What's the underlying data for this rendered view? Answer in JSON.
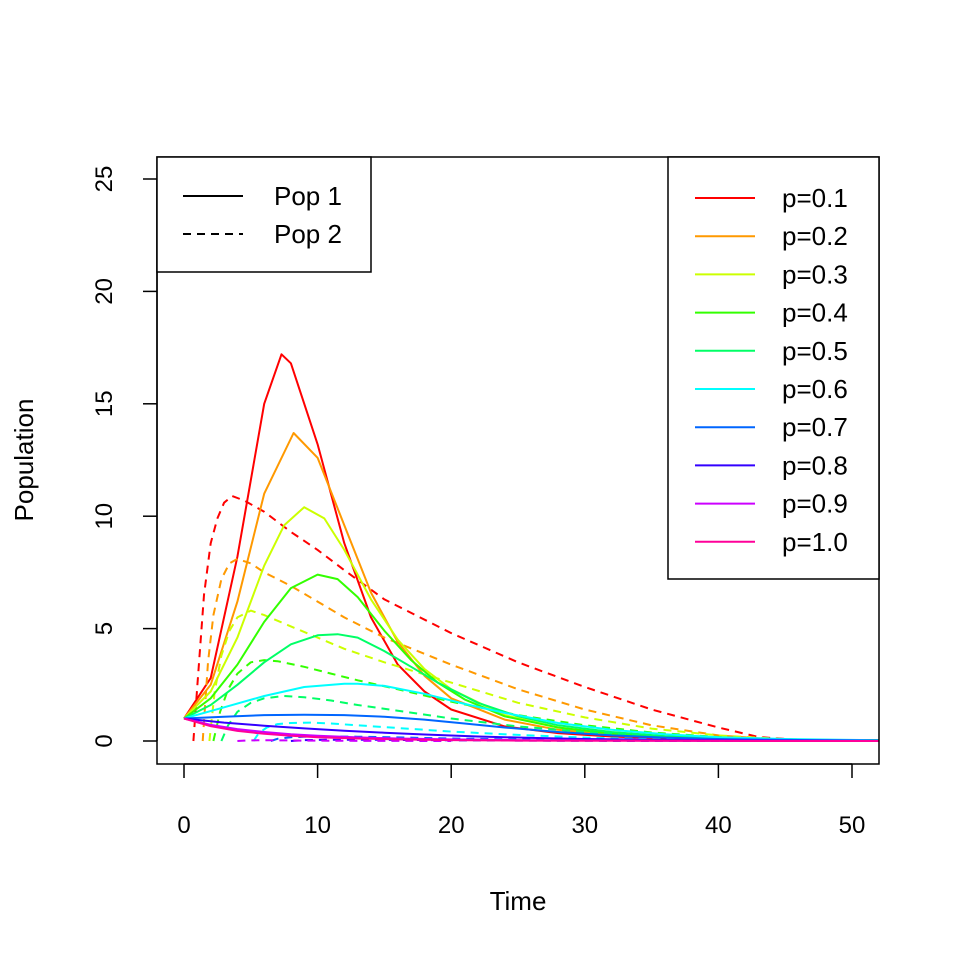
{
  "chart_data": {
    "type": "line",
    "title": "",
    "xlabel": "Time",
    "ylabel": "Population",
    "xlim": [
      -2,
      52
    ],
    "ylim": [
      -1,
      26
    ],
    "x_ticks": [
      "0",
      "10",
      "20",
      "30",
      "40",
      "50"
    ],
    "y_ticks": [
      "0",
      "5",
      "10",
      "15",
      "20",
      "25"
    ],
    "grid": false,
    "legends": [
      {
        "placement": "top-left",
        "entries": [
          {
            "label": "Pop 1",
            "dash": "solid"
          },
          {
            "label": "Pop 2",
            "dash": "dashed"
          }
        ]
      },
      {
        "placement": "top-right",
        "entries": [
          {
            "label": "p=0.1",
            "color": "#FF0000"
          },
          {
            "label": "p=0.2",
            "color": "#FF9900"
          },
          {
            "label": "p=0.3",
            "color": "#CCFF00"
          },
          {
            "label": "p=0.4",
            "color": "#33FF00"
          },
          {
            "label": "p=0.5",
            "color": "#00FF66"
          },
          {
            "label": "p=0.6",
            "color": "#00FFFF"
          },
          {
            "label": "p=0.7",
            "color": "#0066FF"
          },
          {
            "label": "p=0.8",
            "color": "#3300FF"
          },
          {
            "label": "p=0.9",
            "color": "#CC00FF"
          },
          {
            "label": "p=1.0",
            "color": "#FF0099"
          }
        ]
      }
    ],
    "series": [
      {
        "name": "p=0.1",
        "color": "#FF0000",
        "dash": "solid",
        "x": [
          0,
          2,
          4,
          6,
          7.3,
          8,
          10,
          12,
          14,
          16,
          18,
          20,
          24,
          28,
          32,
          36,
          40,
          45,
          52
        ],
        "y": [
          1,
          2.8,
          8.2,
          15,
          17.2,
          16.8,
          13.2,
          8.8,
          5.5,
          3.4,
          2.2,
          1.4,
          0.65,
          0.35,
          0.2,
          0.12,
          0.07,
          0.04,
          0.02
        ]
      },
      {
        "name": "p=0.1",
        "color": "#FF0000",
        "dash": "dashed",
        "x": [
          0.7,
          1,
          1.5,
          2,
          2.5,
          3,
          3.6,
          4.5,
          6,
          8,
          10,
          12,
          15,
          20,
          25,
          30,
          35,
          40,
          43,
          46,
          52
        ],
        "y": [
          0,
          2.5,
          6.5,
          8.8,
          9.9,
          10.6,
          10.9,
          10.7,
          10.2,
          9.3,
          8.5,
          7.6,
          6.3,
          4.8,
          3.5,
          2.4,
          1.4,
          0.6,
          0.18,
          0.05,
          0
        ]
      },
      {
        "name": "p=0.2",
        "color": "#FF9900",
        "dash": "solid",
        "x": [
          0,
          2,
          4,
          6,
          8.2,
          10,
          12,
          14,
          16,
          18,
          20,
          24,
          28,
          32,
          36,
          40,
          45,
          52
        ],
        "y": [
          1,
          2.5,
          6.2,
          11,
          13.7,
          12.6,
          9.6,
          6.6,
          4.4,
          2.9,
          1.9,
          0.95,
          0.5,
          0.28,
          0.16,
          0.1,
          0.06,
          0.03
        ]
      },
      {
        "name": "p=0.2",
        "color": "#FF9900",
        "dash": "dashed",
        "x": [
          1.4,
          1.8,
          2.2,
          2.8,
          3.4,
          4,
          5,
          6,
          8,
          10,
          12,
          15,
          20,
          25,
          30,
          35,
          40,
          44,
          52
        ],
        "y": [
          0,
          3.5,
          5.6,
          7.2,
          7.9,
          8.1,
          7.9,
          7.5,
          6.9,
          6.2,
          5.5,
          4.6,
          3.4,
          2.3,
          1.4,
          0.7,
          0.25,
          0.08,
          0
        ]
      },
      {
        "name": "p=0.3",
        "color": "#CCFF00",
        "dash": "solid",
        "x": [
          0,
          2,
          4,
          6,
          7.5,
          9,
          10.5,
          12,
          14,
          16,
          18,
          20,
          24,
          28,
          32,
          36,
          40,
          45,
          52
        ],
        "y": [
          1,
          2.2,
          4.6,
          7.8,
          9.6,
          10.4,
          9.9,
          8.5,
          6.3,
          4.5,
          3.2,
          2.3,
          1.15,
          0.6,
          0.32,
          0.18,
          0.1,
          0.06,
          0.03
        ]
      },
      {
        "name": "p=0.3",
        "color": "#CCFF00",
        "dash": "dashed",
        "x": [
          1.9,
          2.3,
          2.8,
          3.4,
          4,
          5,
          6,
          8,
          10,
          12,
          15,
          20,
          25,
          30,
          35,
          40,
          45,
          52
        ],
        "y": [
          0,
          2.2,
          3.8,
          4.9,
          5.5,
          5.8,
          5.6,
          5.1,
          4.6,
          4.1,
          3.5,
          2.6,
          1.7,
          1.05,
          0.55,
          0.25,
          0.08,
          0
        ]
      },
      {
        "name": "p=0.4",
        "color": "#33FF00",
        "dash": "solid",
        "x": [
          0,
          2,
          4,
          6,
          8,
          10,
          11.5,
          13,
          15,
          17,
          19,
          21,
          24,
          28,
          32,
          36,
          40,
          45,
          52
        ],
        "y": [
          1,
          1.9,
          3.4,
          5.3,
          6.8,
          7.4,
          7.2,
          6.4,
          4.9,
          3.6,
          2.6,
          1.85,
          1.1,
          0.6,
          0.33,
          0.18,
          0.1,
          0.06,
          0.03
        ]
      },
      {
        "name": "p=0.4",
        "color": "#33FF00",
        "dash": "dashed",
        "x": [
          2.2,
          2.7,
          3.3,
          4,
          5,
          6,
          7,
          9,
          11,
          13,
          16,
          20,
          25,
          30,
          35,
          40,
          45,
          52
        ],
        "y": [
          0,
          1.3,
          2.3,
          3,
          3.5,
          3.6,
          3.55,
          3.3,
          3,
          2.7,
          2.3,
          1.75,
          1.15,
          0.7,
          0.38,
          0.18,
          0.06,
          0
        ]
      },
      {
        "name": "p=0.5",
        "color": "#00FF66",
        "dash": "solid",
        "x": [
          0,
          2,
          4,
          6,
          8,
          10,
          11.5,
          13,
          15,
          17,
          19,
          22,
          25,
          28,
          32,
          36,
          40,
          45,
          52
        ],
        "y": [
          1,
          1.6,
          2.5,
          3.5,
          4.3,
          4.7,
          4.75,
          4.6,
          4,
          3.3,
          2.6,
          1.7,
          1.1,
          0.7,
          0.4,
          0.22,
          0.12,
          0.06,
          0.03
        ]
      },
      {
        "name": "p=0.5",
        "color": "#00FF66",
        "dash": "dashed",
        "x": [
          2.8,
          3.3,
          4,
          5,
          6,
          7.5,
          9,
          11,
          13,
          16,
          20,
          25,
          30,
          35,
          40,
          46,
          52
        ],
        "y": [
          0,
          0.7,
          1.3,
          1.7,
          1.9,
          2,
          1.95,
          1.8,
          1.6,
          1.35,
          1,
          0.65,
          0.4,
          0.22,
          0.1,
          0.03,
          0
        ]
      },
      {
        "name": "p=0.6",
        "color": "#00FFFF",
        "dash": "solid",
        "x": [
          0,
          3,
          6,
          9,
          12,
          13,
          15,
          18,
          21,
          24,
          28,
          32,
          36,
          40,
          45,
          52
        ],
        "y": [
          1,
          1.5,
          2,
          2.4,
          2.55,
          2.55,
          2.45,
          2.1,
          1.65,
          1.25,
          0.8,
          0.5,
          0.3,
          0.17,
          0.09,
          0.03
        ]
      },
      {
        "name": "p=0.6",
        "color": "#00FFFF",
        "dash": "dashed",
        "x": [
          5.2,
          5.6,
          6.2,
          7,
          8,
          9.5,
          11,
          13,
          16,
          20,
          25,
          30,
          35,
          40,
          46,
          52
        ],
        "y": [
          0,
          0.35,
          0.6,
          0.75,
          0.8,
          0.82,
          0.78,
          0.7,
          0.58,
          0.42,
          0.27,
          0.15,
          0.08,
          0.04,
          0.01,
          0
        ]
      },
      {
        "name": "p=0.7",
        "color": "#0066FF",
        "dash": "solid",
        "x": [
          0,
          3,
          6,
          9,
          12,
          15,
          18,
          21,
          24,
          28,
          32,
          36,
          40,
          45,
          52
        ],
        "y": [
          1,
          1.08,
          1.15,
          1.17,
          1.15,
          1.08,
          0.95,
          0.78,
          0.6,
          0.4,
          0.25,
          0.15,
          0.09,
          0.05,
          0.02
        ]
      },
      {
        "name": "p=0.7",
        "color": "#0066FF",
        "dash": "dashed",
        "x": [
          6.5,
          7,
          8,
          9.5,
          11,
          13,
          16,
          20,
          25,
          30,
          36,
          42,
          52
        ],
        "y": [
          0,
          0.1,
          0.17,
          0.2,
          0.2,
          0.19,
          0.16,
          0.11,
          0.07,
          0.04,
          0.02,
          0.01,
          0
        ]
      },
      {
        "name": "p=0.8",
        "color": "#3300FF",
        "dash": "solid",
        "x": [
          0,
          3,
          6,
          9,
          12,
          15,
          18,
          22,
          26,
          30,
          35,
          40,
          45,
          52
        ],
        "y": [
          1,
          0.82,
          0.68,
          0.56,
          0.46,
          0.37,
          0.29,
          0.2,
          0.14,
          0.09,
          0.06,
          0.04,
          0.02,
          0.01
        ]
      },
      {
        "name": "p=0.8",
        "color": "#3300FF",
        "dash": "dashed",
        "x": [
          8,
          9,
          11,
          13,
          16,
          20,
          25,
          30,
          52
        ],
        "y": [
          0,
          0.04,
          0.06,
          0.06,
          0.05,
          0.03,
          0.02,
          0.01,
          0
        ]
      },
      {
        "name": "p=0.9",
        "color": "#CC00FF",
        "dash": "solid",
        "x": [
          0,
          2,
          4,
          6,
          8,
          10,
          13,
          16,
          20,
          25,
          30,
          35,
          40,
          45,
          52
        ],
        "y": [
          1,
          0.72,
          0.53,
          0.4,
          0.3,
          0.23,
          0.16,
          0.11,
          0.07,
          0.04,
          0.025,
          0.015,
          0.01,
          0.005,
          0
        ]
      },
      {
        "name": "p=0.9",
        "color": "#CC00FF",
        "dash": "dashed",
        "x": [
          4,
          4.5,
          5.5,
          7,
          9,
          12,
          16,
          20
        ],
        "y": [
          0,
          0.02,
          0.03,
          0.03,
          0.02,
          0.01,
          0.005,
          0
        ]
      },
      {
        "name": "p=1.0",
        "color": "#FF0099",
        "dash": "solid",
        "x": [
          0,
          2,
          4,
          6,
          8,
          10,
          13,
          16,
          20,
          25,
          30,
          35,
          40,
          45,
          52
        ],
        "y": [
          1,
          0.66,
          0.45,
          0.32,
          0.23,
          0.17,
          0.11,
          0.07,
          0.04,
          0.02,
          0.012,
          0.007,
          0.004,
          0.002,
          0
        ]
      }
    ]
  }
}
